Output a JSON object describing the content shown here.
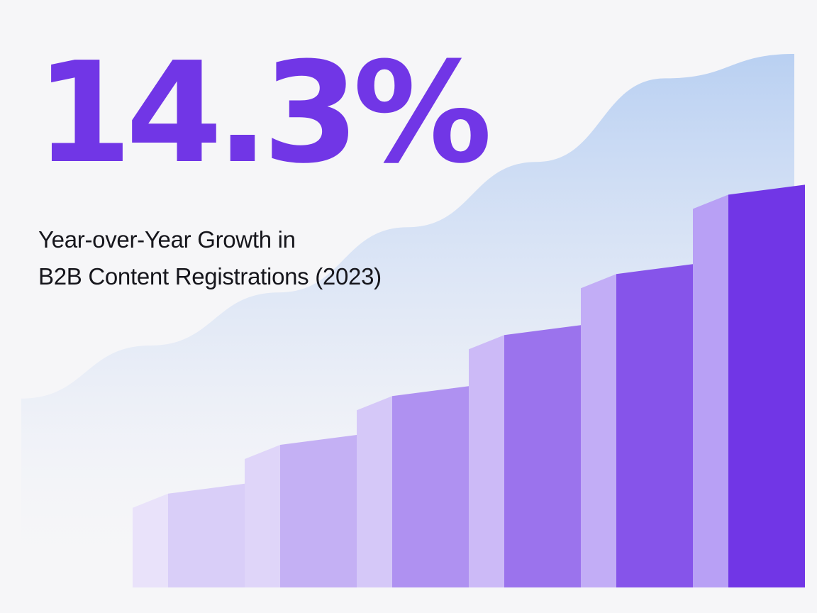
{
  "headline": {
    "value": "14.3%"
  },
  "subtitle": {
    "line1": "Year-over-Year Growth in",
    "line2": "B2B Content Registrations (2023)"
  },
  "colors": {
    "accent": "#7136e6",
    "text": "#16161c",
    "background": "#f6f6f8",
    "curve": "#b9d0f2"
  },
  "chart_data": {
    "type": "bar",
    "title": "",
    "xlabel": "",
    "ylabel": "",
    "categories": [
      "",
      "",
      "",
      "",
      "",
      ""
    ],
    "values": [
      17,
      25,
      33,
      43,
      53,
      66
    ],
    "trend": [
      17,
      25,
      33,
      43,
      53,
      66,
      83
    ],
    "grid": false,
    "legend": "none"
  }
}
